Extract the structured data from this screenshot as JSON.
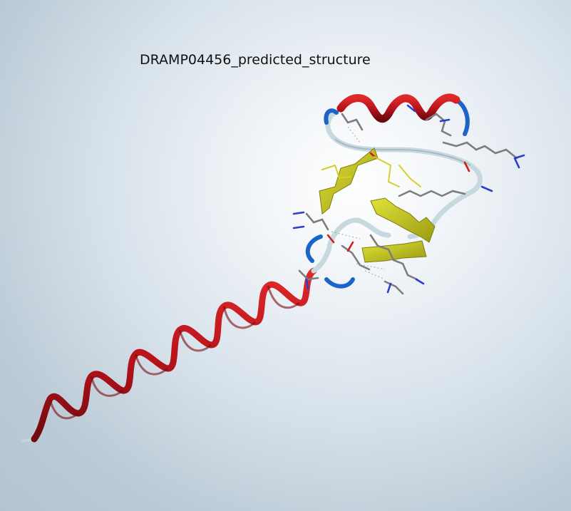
{
  "viewer": {
    "title": "DRAMP04456_predicted_structure"
  },
  "colors": {
    "helix": "#c0141a",
    "helix_dark": "#7e0d10",
    "sheet": "#c8c81e",
    "sheet_dark": "#8f8f10",
    "coil": "#dbe9ef",
    "coil_edge": "#8fa5b0",
    "turn": "#1c64c8",
    "carbon": "#7d7d7d",
    "nitrogen": "#2a3fd0",
    "oxygen": "#cc2020",
    "sulfur": "#d8cf2a"
  }
}
